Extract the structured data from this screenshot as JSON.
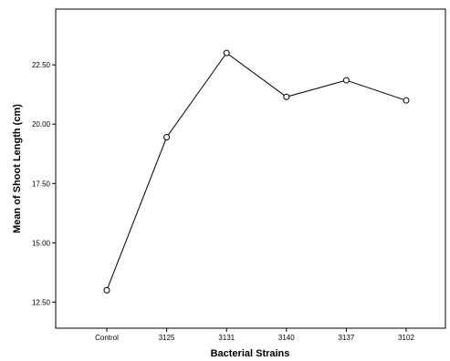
{
  "chart_data": {
    "type": "line",
    "title": "",
    "xlabel": "Bacterial Strains",
    "ylabel": "Mean of Shoot Length (cm)",
    "categories": [
      "Control",
      "3125",
      "3131",
      "3140",
      "3137",
      "3102"
    ],
    "values": [
      13.0,
      19.45,
      23.0,
      21.15,
      21.85,
      21.0
    ],
    "yticks": [
      12.5,
      15.0,
      17.5,
      20.0,
      22.5
    ],
    "ytick_labels": [
      "12.50",
      "15.00",
      "17.50",
      "20.00",
      "22.50"
    ],
    "ylim": [
      11.4,
      24.85
    ],
    "grid": false,
    "legend": "none",
    "marker": "open-circle",
    "colors": {
      "line": "#000000",
      "background": "#ffffff"
    }
  }
}
